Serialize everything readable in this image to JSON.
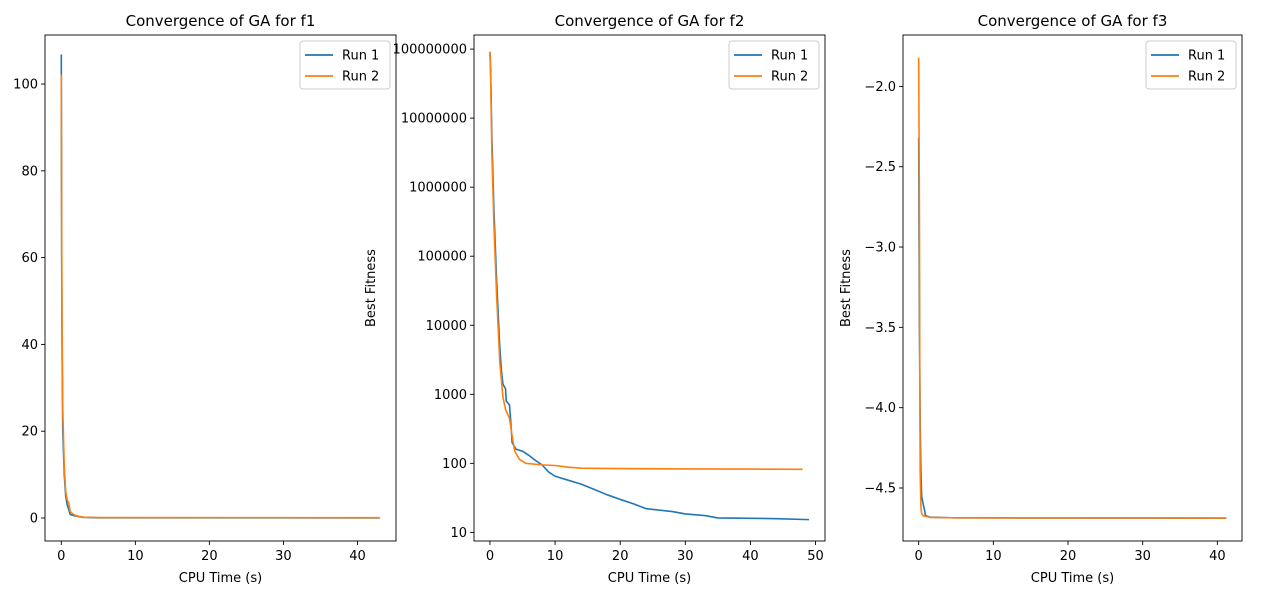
{
  "colors": {
    "run1": "#1f77b4",
    "run2": "#ff7f0e",
    "axis": "#000000",
    "legend_border": "#cccccc"
  },
  "chart_data": [
    {
      "type": "line",
      "title": "Convergence of GA for f1",
      "xlabel": "CPU Time (s)",
      "ylabel": "",
      "xlim": [
        -2.2,
        45.2
      ],
      "ylim": [
        -5.3,
        111.3
      ],
      "yscale": "linear",
      "xticks": [
        0,
        10,
        20,
        30,
        40
      ],
      "yticks": [
        0,
        20,
        40,
        60,
        80,
        100
      ],
      "ytick_labels": [
        "0",
        "20",
        "40",
        "60",
        "80",
        "100"
      ],
      "legend": "top-right",
      "series": [
        {
          "name": "Run 1",
          "points": [
            [
              0,
              106.8
            ],
            [
              0.05,
              60
            ],
            [
              0.1,
              40
            ],
            [
              0.2,
              20
            ],
            [
              0.4,
              10
            ],
            [
              0.6,
              5
            ],
            [
              0.8,
              3
            ],
            [
              1.0,
              2
            ],
            [
              1.2,
              0.8
            ],
            [
              2,
              0.4
            ],
            [
              3,
              0.15
            ],
            [
              5,
              0.05
            ],
            [
              43,
              0.02
            ]
          ]
        },
        {
          "name": "Run 2",
          "points": [
            [
              0,
              102.2
            ],
            [
              0.05,
              70
            ],
            [
              0.1,
              45
            ],
            [
              0.2,
              25
            ],
            [
              0.4,
              12
            ],
            [
              0.6,
              6
            ],
            [
              0.8,
              4.2
            ],
            [
              1.0,
              3.5
            ],
            [
              1.2,
              1.5
            ],
            [
              1.5,
              1.0
            ],
            [
              2,
              0.5
            ],
            [
              3,
              0.2
            ],
            [
              5,
              0.1
            ],
            [
              43,
              0.08
            ]
          ]
        }
      ]
    },
    {
      "type": "line",
      "title": "Convergence of GA for f2",
      "xlabel": "CPU Time (s)",
      "ylabel": "Best Fitness",
      "xlim": [
        -2.45,
        51.45
      ],
      "ylim": [
        7.5,
        160000000
      ],
      "yscale": "log",
      "xticks": [
        0,
        10,
        20,
        30,
        40,
        50
      ],
      "yticks": [
        10,
        100,
        1000,
        10000,
        100000,
        1000000,
        10000000,
        100000000
      ],
      "ytick_labels": [
        "10",
        "100",
        "1000",
        "10000",
        "100000",
        "1000000",
        "10000000",
        "100000000"
      ],
      "legend": "top-right",
      "series": [
        {
          "name": "Run 1",
          "points": [
            [
              0,
              90000000
            ],
            [
              0.1,
              50000000
            ],
            [
              0.3,
              5000000
            ],
            [
              0.6,
              500000
            ],
            [
              1.0,
              50000
            ],
            [
              1.5,
              5000
            ],
            [
              1.8,
              2000
            ],
            [
              2.0,
              1400
            ],
            [
              2.4,
              1200
            ],
            [
              2.5,
              800
            ],
            [
              3.0,
              700
            ],
            [
              3.2,
              400
            ],
            [
              3.4,
              200
            ],
            [
              4,
              160
            ],
            [
              5,
              150
            ],
            [
              6,
              130
            ],
            [
              7,
              110
            ],
            [
              8,
              95
            ],
            [
              9,
              75
            ],
            [
              10,
              65
            ],
            [
              12,
              57
            ],
            [
              14,
              50
            ],
            [
              16,
              42
            ],
            [
              18,
              35
            ],
            [
              20,
              30
            ],
            [
              22,
              26
            ],
            [
              24,
              22
            ],
            [
              28,
              20
            ],
            [
              30,
              18.5
            ],
            [
              33,
              17.5
            ],
            [
              35,
              16.2
            ],
            [
              40,
              16
            ],
            [
              44,
              15.8
            ],
            [
              49,
              15.3
            ]
          ]
        },
        {
          "name": "Run 2",
          "points": [
            [
              0,
              92000000
            ],
            [
              0.1,
              40000000
            ],
            [
              0.3,
              3000000
            ],
            [
              0.6,
              300000
            ],
            [
              1.0,
              30000
            ],
            [
              1.5,
              3000
            ],
            [
              2.0,
              900
            ],
            [
              2.4,
              600
            ],
            [
              3.0,
              450
            ],
            [
              3.4,
              250
            ],
            [
              3.8,
              150
            ],
            [
              4.5,
              115
            ],
            [
              5.5,
              100
            ],
            [
              8,
              95
            ],
            [
              10,
              93
            ],
            [
              12,
              88
            ],
            [
              14,
              85
            ],
            [
              20,
              84
            ],
            [
              30,
              83
            ],
            [
              40,
              82.5
            ],
            [
              48,
              82
            ]
          ]
        }
      ]
    },
    {
      "type": "line",
      "title": "Convergence of GA for f3",
      "xlabel": "CPU Time (s)",
      "ylabel": "Best Fitness",
      "xlim": [
        -2.1,
        43.3
      ],
      "ylim": [
        -4.83,
        -1.68
      ],
      "yscale": "linear",
      "xticks": [
        0,
        10,
        20,
        30,
        40
      ],
      "yticks": [
        -4.5,
        -4.0,
        -3.5,
        -3.0,
        -2.5,
        -2.0
      ],
      "ytick_labels": [
        "−4.5",
        "−4.0",
        "−3.5",
        "−3.0",
        "−2.5",
        "−2.0"
      ],
      "legend": "top-right",
      "series": [
        {
          "name": "Run 1",
          "points": [
            [
              0,
              -2.32
            ],
            [
              0.1,
              -3.5
            ],
            [
              0.2,
              -4.1
            ],
            [
              0.3,
              -4.4
            ],
            [
              0.4,
              -4.55
            ],
            [
              0.6,
              -4.6
            ],
            [
              0.8,
              -4.64
            ],
            [
              0.9,
              -4.67
            ],
            [
              1.5,
              -4.682
            ],
            [
              5,
              -4.686
            ],
            [
              41.2,
              -4.688
            ]
          ]
        },
        {
          "name": "Run 2",
          "points": [
            [
              0,
              -1.82
            ],
            [
              0.1,
              -2.8
            ],
            [
              0.15,
              -3.8
            ],
            [
              0.2,
              -4.4
            ],
            [
              0.3,
              -4.62
            ],
            [
              0.4,
              -4.66
            ],
            [
              0.6,
              -4.673
            ],
            [
              1.5,
              -4.683
            ],
            [
              5,
              -4.686
            ],
            [
              41.2,
              -4.687
            ]
          ]
        }
      ]
    }
  ]
}
